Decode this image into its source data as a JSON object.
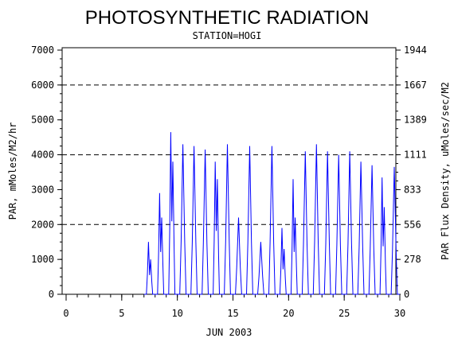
{
  "chart_data": {
    "type": "line",
    "title": "PHOTOSYNTHETIC RADIATION",
    "subtitle": "STATION=HOGI",
    "xlabel": "JUN 2003",
    "ylabel": "PAR, mMoles/M2/hr",
    "ylabel_right": "PAR Flux Density, uMoles/sec/M2",
    "xlim": [
      0,
      30
    ],
    "ylim": [
      0,
      7000
    ],
    "x_ticks": [
      "0",
      "5",
      "10",
      "15",
      "20",
      "25",
      "30"
    ],
    "y_ticks": [
      "0",
      "1000",
      "2000",
      "3000",
      "4000",
      "5000",
      "6000",
      "7000"
    ],
    "y_right_ticks": [
      "0",
      "278",
      "556",
      "833",
      "1111",
      "1389",
      "1667",
      "1944"
    ],
    "gridlines_y": [
      2000,
      4000,
      6000
    ],
    "line_color": "#0000ff",
    "series": [
      {
        "daily_peaks": [
          {
            "day": 7,
            "peaks": [
              1500,
              1000
            ]
          },
          {
            "day": 8,
            "peaks": [
              2900,
              2200
            ]
          },
          {
            "day": 9,
            "peaks": [
              4650,
              3800
            ]
          },
          {
            "day": 10,
            "peaks": [
              4300
            ]
          },
          {
            "day": 11,
            "peaks": [
              4250
            ]
          },
          {
            "day": 12,
            "peaks": [
              4150
            ]
          },
          {
            "day": 13,
            "peaks": [
              3800,
              3300
            ]
          },
          {
            "day": 14,
            "peaks": [
              4300
            ]
          },
          {
            "day": 15,
            "peaks": [
              2200
            ]
          },
          {
            "day": 16,
            "peaks": [
              4250
            ]
          },
          {
            "day": 17,
            "peaks": [
              1500
            ]
          },
          {
            "day": 18,
            "peaks": [
              4250
            ]
          },
          {
            "day": 19,
            "peaks": [
              1900,
              1300
            ]
          },
          {
            "day": 20,
            "peaks": [
              3300,
              2200
            ]
          },
          {
            "day": 21,
            "peaks": [
              4100
            ]
          },
          {
            "day": 22,
            "peaks": [
              4300
            ]
          },
          {
            "day": 23,
            "peaks": [
              4100
            ]
          },
          {
            "day": 24,
            "peaks": [
              4000
            ]
          },
          {
            "day": 25,
            "peaks": [
              4100
            ]
          },
          {
            "day": 26,
            "peaks": [
              3800
            ]
          },
          {
            "day": 27,
            "peaks": [
              3700
            ]
          },
          {
            "day": 28,
            "peaks": [
              3350,
              2500
            ]
          },
          {
            "day": 29,
            "peaks": [
              3650
            ]
          }
        ]
      }
    ]
  }
}
